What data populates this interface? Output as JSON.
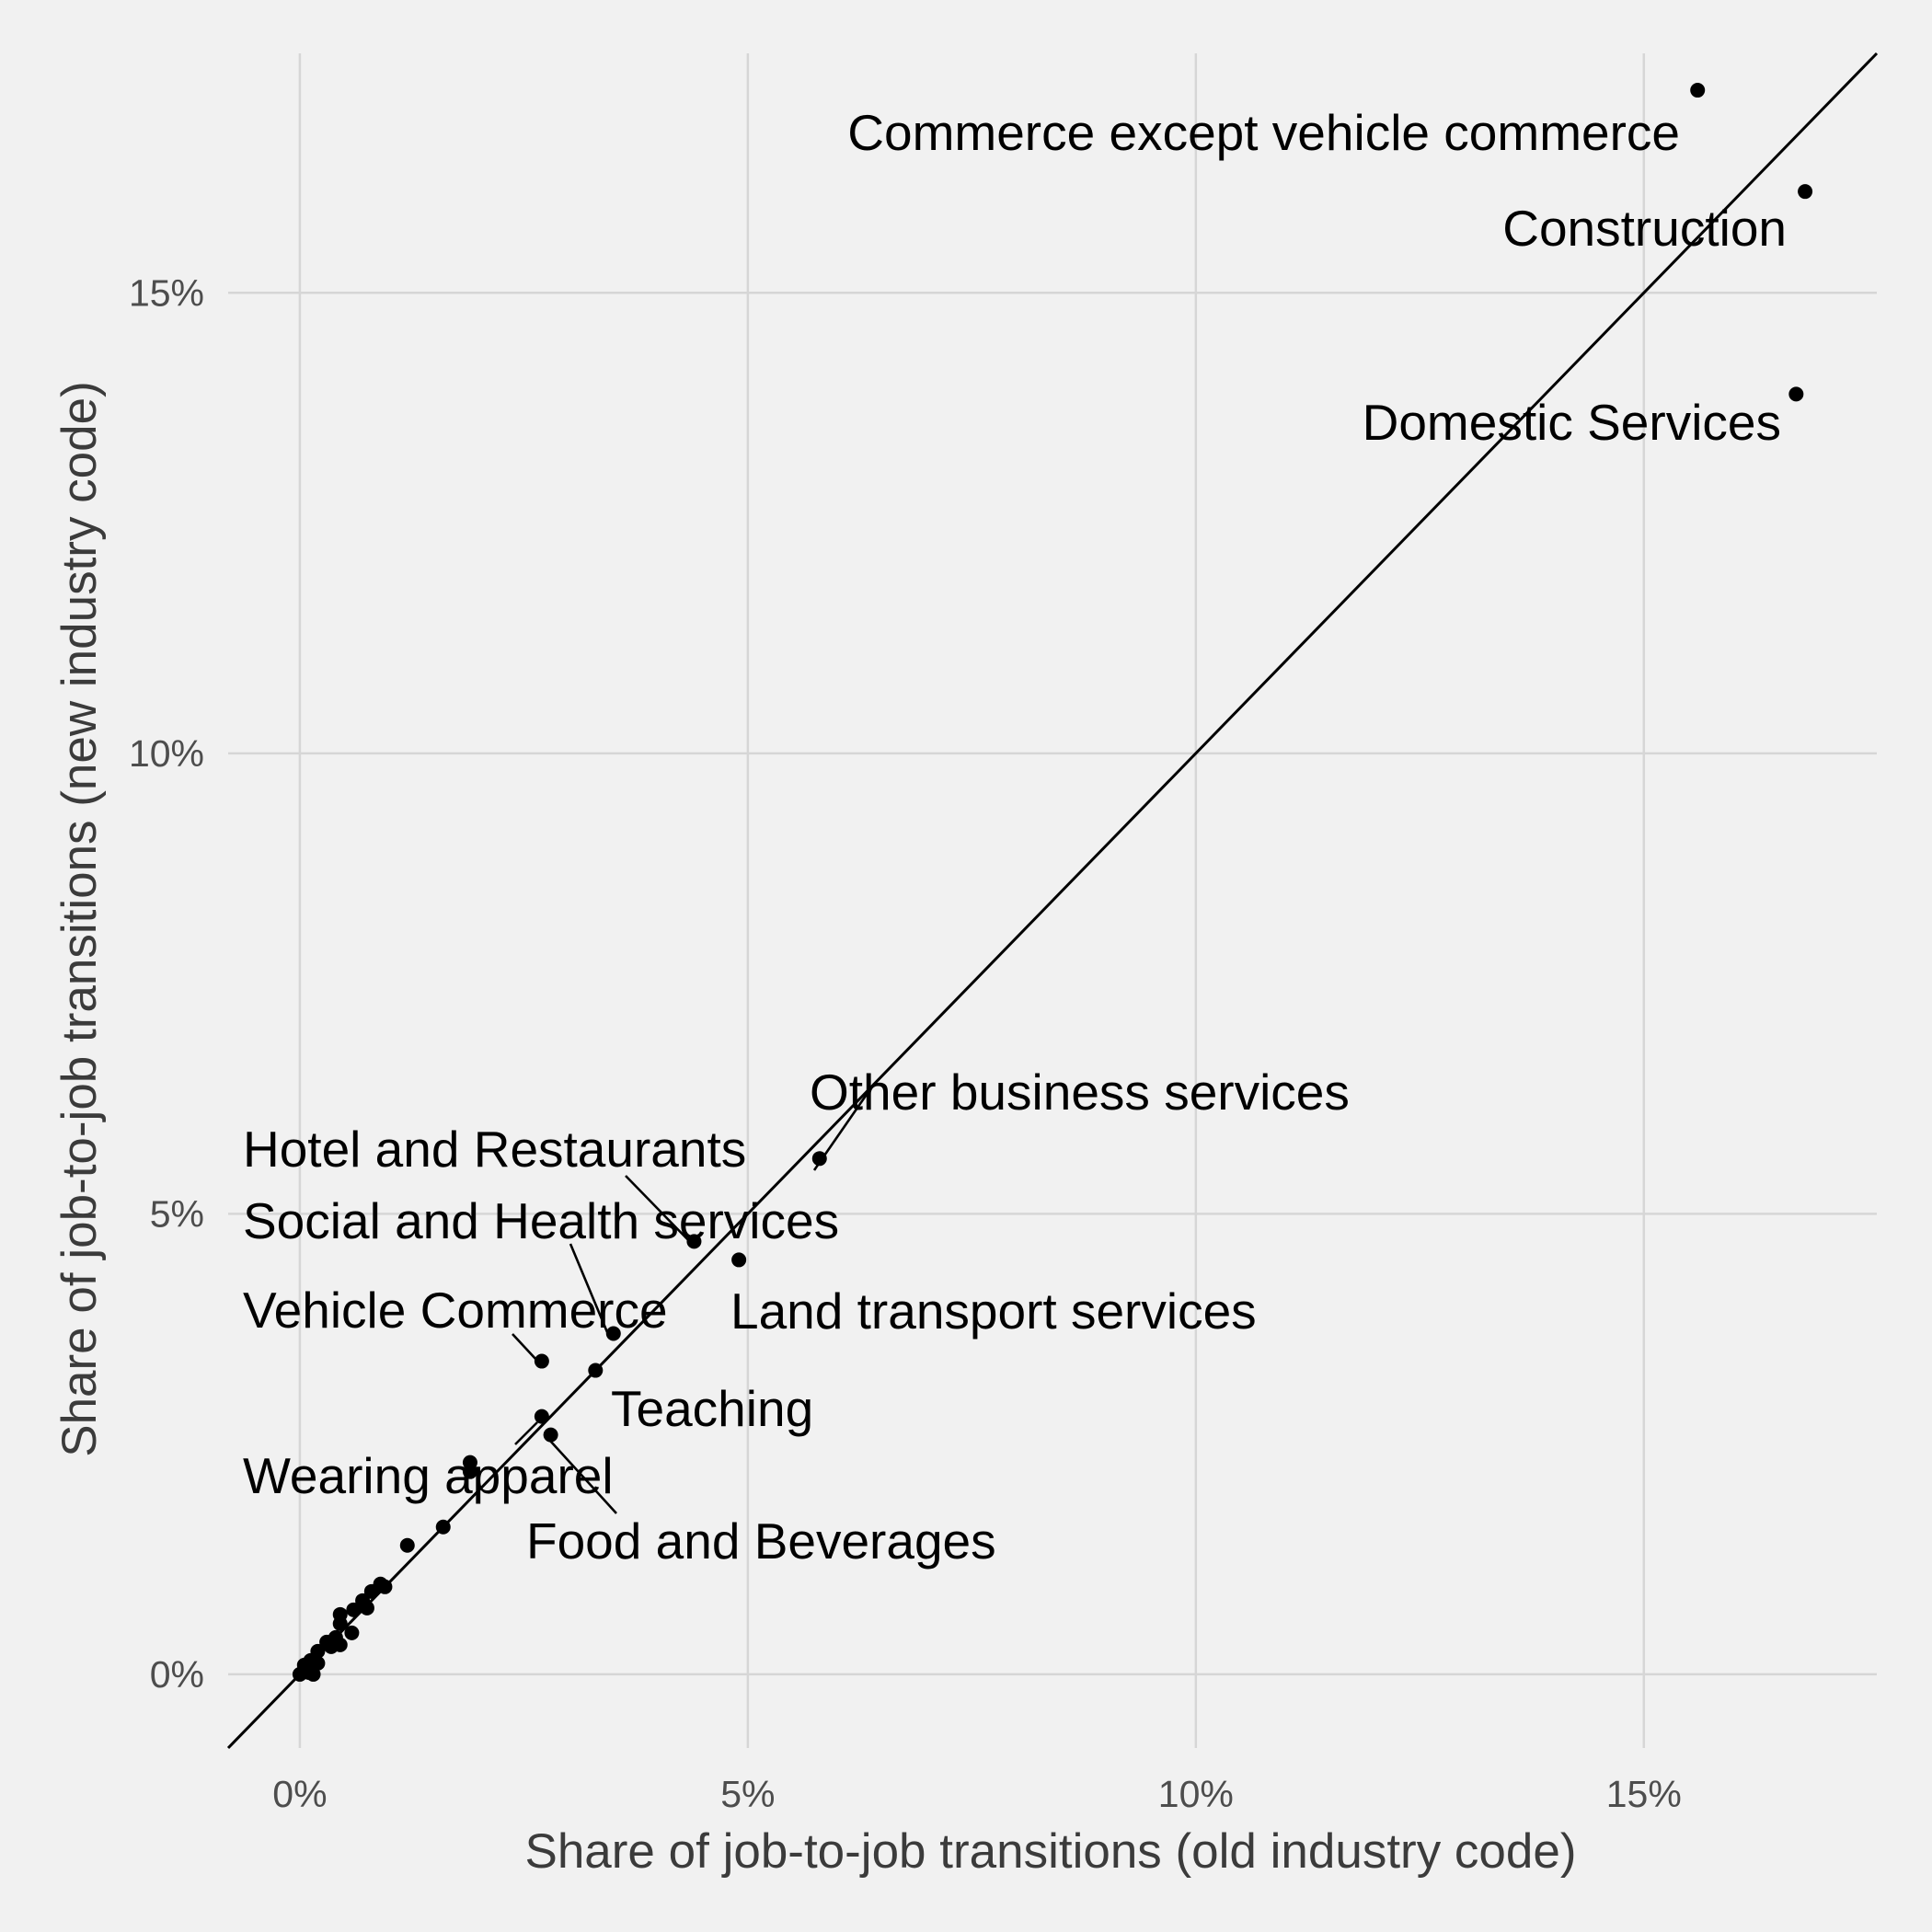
{
  "chart_data": {
    "type": "scatter",
    "title": "",
    "xlabel": "Share of job-to-job transitions (old industry code)",
    "ylabel": "Share of job-to-job transitions (new industry code)",
    "xlim": [
      -0.8,
      17.6
    ],
    "ylim": [
      -0.8,
      17.6
    ],
    "x_ticks": [
      0,
      5,
      10,
      15
    ],
    "y_ticks": [
      0,
      5,
      10,
      15
    ],
    "tick_labels": [
      "0%",
      "5%",
      "10%",
      "15%"
    ],
    "grid": true,
    "reference_line": "y = x",
    "labeled_points": [
      {
        "name": "Commerce except vehicle commerce",
        "x": 15.6,
        "y": 17.2
      },
      {
        "name": "Construction",
        "x": 16.8,
        "y": 16.1
      },
      {
        "name": "Domestic Services",
        "x": 16.7,
        "y": 13.9
      },
      {
        "name": "Other business services",
        "x": 5.8,
        "y": 5.6
      },
      {
        "name": "Hotel and Restaurants",
        "x": 4.4,
        "y": 4.7
      },
      {
        "name": "Land transport services",
        "x": 4.9,
        "y": 4.5
      },
      {
        "name": "Social and Health services",
        "x": 3.5,
        "y": 3.7
      },
      {
        "name": "Vehicle Commerce",
        "x": 2.7,
        "y": 3.4
      },
      {
        "name": "Teaching",
        "x": 3.3,
        "y": 3.3
      },
      {
        "name": "Wearing apparel",
        "x": 2.7,
        "y": 2.8
      },
      {
        "name": "Food and Beverages",
        "x": 2.8,
        "y": 2.6
      }
    ],
    "other_points": [
      [
        1.9,
        2.3
      ],
      [
        1.9,
        2.2
      ],
      [
        1.6,
        1.6
      ],
      [
        1.2,
        1.4
      ],
      [
        0.95,
        0.95
      ],
      [
        0.9,
        0.98
      ],
      [
        0.8,
        0.9
      ],
      [
        0.7,
        0.8
      ],
      [
        0.75,
        0.72
      ],
      [
        0.6,
        0.7
      ],
      [
        0.45,
        0.65
      ],
      [
        0.45,
        0.55
      ],
      [
        0.58,
        0.45
      ],
      [
        0.4,
        0.4
      ],
      [
        0.35,
        0.3
      ],
      [
        0.45,
        0.32
      ],
      [
        0.3,
        0.35
      ],
      [
        0.2,
        0.25
      ],
      [
        0.2,
        0.12
      ],
      [
        0.12,
        0.15
      ],
      [
        0.05,
        0.1
      ],
      [
        0.1,
        0.02
      ],
      [
        0.0,
        0.0
      ],
      [
        0.05,
        0.05
      ],
      [
        0.15,
        0.0
      ]
    ]
  }
}
